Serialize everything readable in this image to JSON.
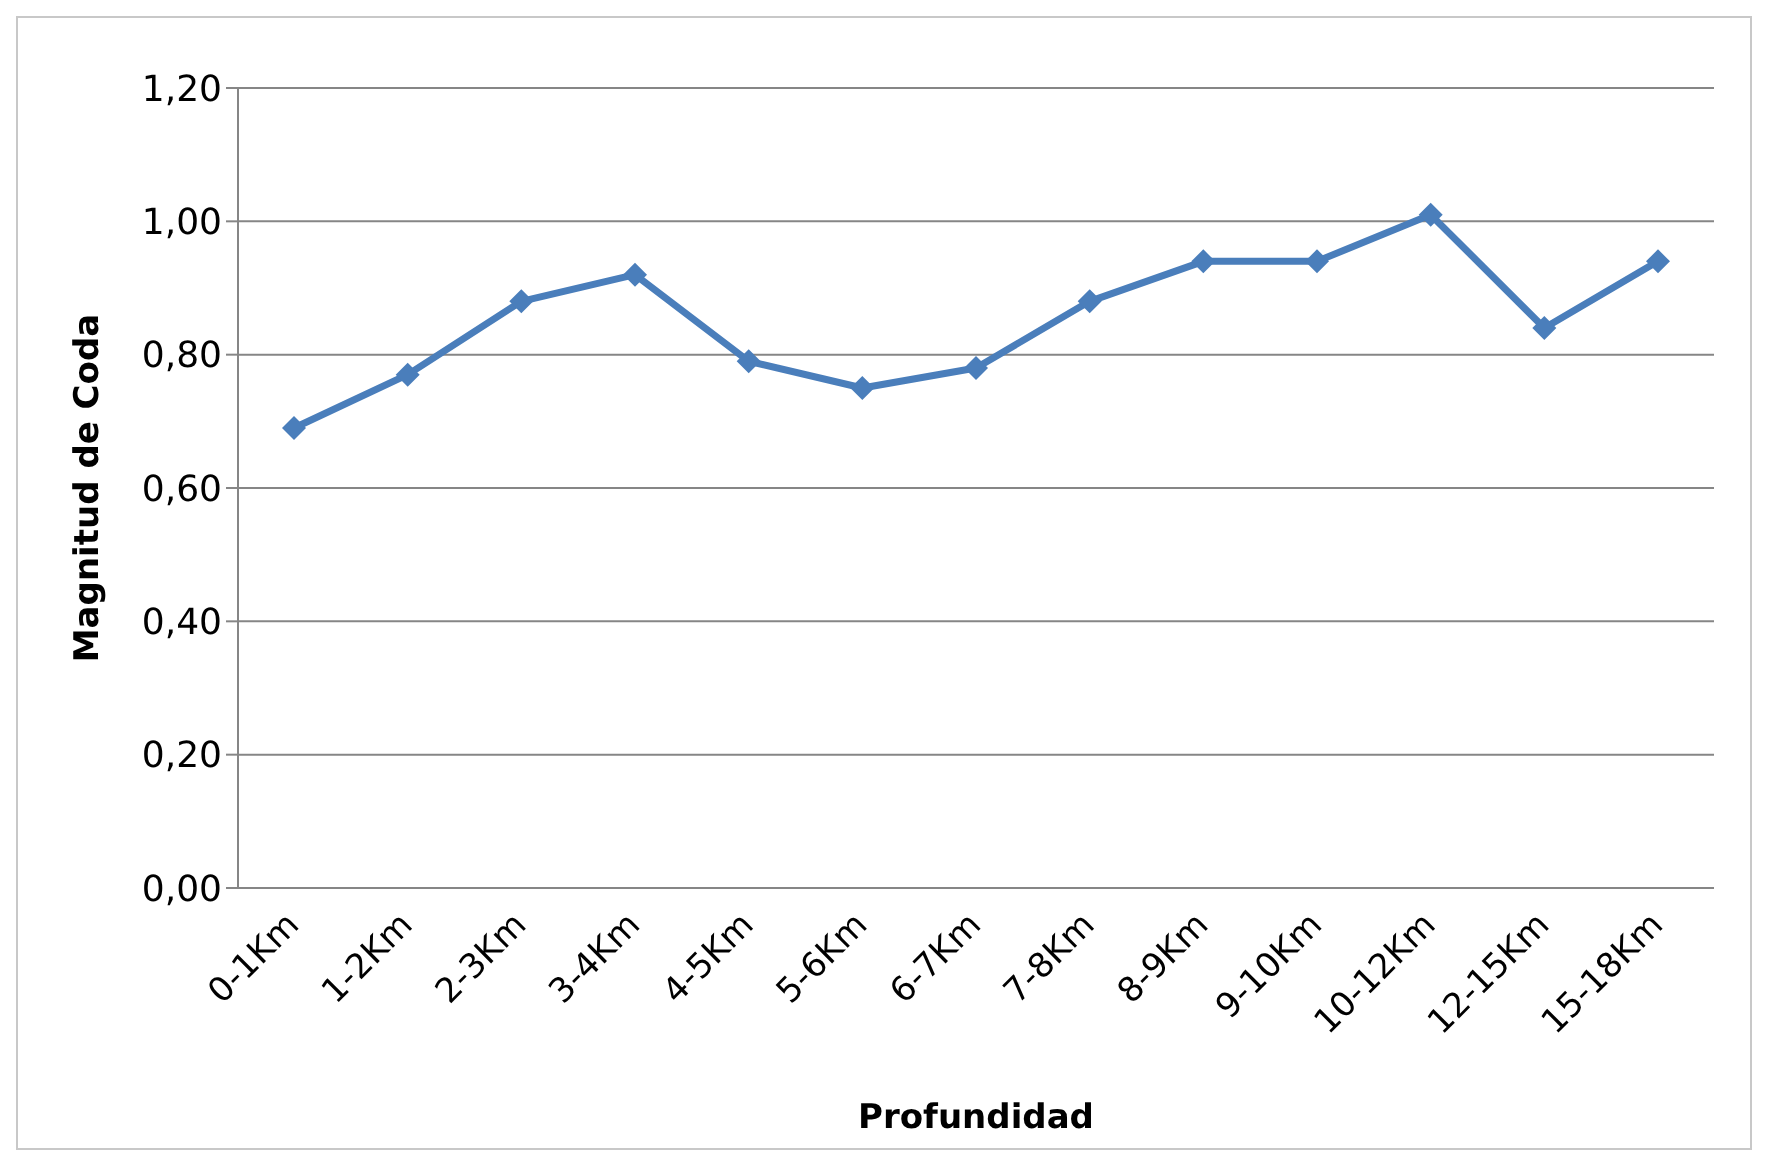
{
  "chart_data": {
    "type": "line",
    "xlabel": "Profundidad",
    "ylabel": "Magnitud de Coda",
    "categories": [
      "0-1Km",
      "1-2Km",
      "2-3Km",
      "3-4Km",
      "4-5Km",
      "5-6Km",
      "6-7Km",
      "7-8Km",
      "8-9Km",
      "9-10Km",
      "10-12Km",
      "12-15Km",
      "15-18Km"
    ],
    "series": [
      {
        "color": "#4a7ebb",
        "values": [
          0.69,
          0.77,
          0.88,
          0.92,
          0.79,
          0.75,
          0.78,
          0.88,
          0.94,
          0.94,
          1.01,
          0.84,
          0.94
        ]
      }
    ],
    "ylim": [
      0,
      1.2
    ],
    "yticks": [
      {
        "value": 0,
        "label": "0,00"
      },
      {
        "value": 0.2,
        "label": "0,20"
      },
      {
        "value": 0.4,
        "label": "0,40"
      },
      {
        "value": 0.6,
        "label": "0,60"
      },
      {
        "value": 0.8,
        "label": "0,80"
      },
      {
        "value": 1,
        "label": "1,00"
      },
      {
        "value": 1.2,
        "label": "1,20"
      }
    ],
    "grid": "y",
    "marker": "diamond",
    "line_style": "solid",
    "legend": false
  }
}
